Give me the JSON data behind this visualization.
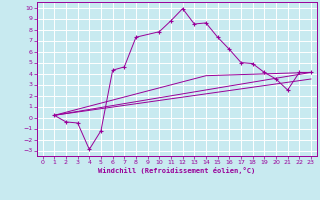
{
  "xlabel": "Windchill (Refroidissement éolien,°C)",
  "bg_color": "#c8eaf0",
  "grid_color": "#ffffff",
  "line_color": "#990099",
  "xlim": [
    -0.5,
    23.5
  ],
  "ylim": [
    -3.5,
    10.5
  ],
  "xticks": [
    0,
    1,
    2,
    3,
    4,
    5,
    6,
    7,
    8,
    9,
    10,
    11,
    12,
    13,
    14,
    15,
    16,
    17,
    18,
    19,
    20,
    21,
    22,
    23
  ],
  "yticks": [
    -3,
    -2,
    -1,
    0,
    1,
    2,
    3,
    4,
    5,
    6,
    7,
    8,
    9,
    10
  ],
  "line1_x": [
    1,
    2,
    3,
    4,
    5,
    6,
    7,
    8,
    10,
    11,
    12,
    13,
    14,
    15,
    16,
    17,
    18,
    19,
    20,
    21,
    22,
    23
  ],
  "line1_y": [
    0.2,
    -0.4,
    -0.5,
    -2.9,
    -1.2,
    4.3,
    4.6,
    7.3,
    7.8,
    8.8,
    9.9,
    8.5,
    8.6,
    7.3,
    6.2,
    5.0,
    4.9,
    4.1,
    3.5,
    2.5,
    4.1,
    4.1
  ],
  "line2_x": [
    1,
    23
  ],
  "line2_y": [
    0.2,
    4.1
  ],
  "line3_x": [
    1,
    14,
    23
  ],
  "line3_y": [
    0.2,
    3.8,
    4.1
  ],
  "line4_x": [
    1,
    23
  ],
  "line4_y": [
    0.2,
    3.5
  ]
}
